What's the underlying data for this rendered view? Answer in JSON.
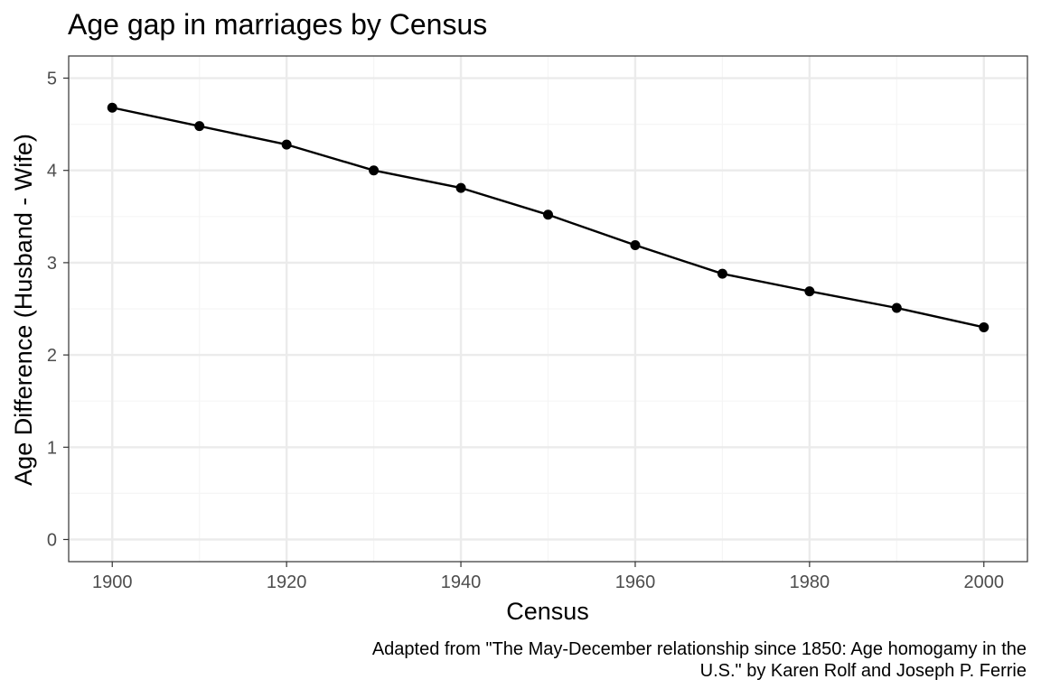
{
  "chart_data": {
    "type": "line",
    "title": "Age gap in marriages by Census",
    "xlabel": "Census",
    "ylabel": "Age Difference (Husband - Wife)",
    "caption": [
      "Adapted from \"The May-December relationship since 1850: Age homogamy in the",
      "U.S.\" by Karen Rolf and Joseph P. Ferrie"
    ],
    "x": [
      1900,
      1910,
      1920,
      1930,
      1940,
      1950,
      1960,
      1970,
      1980,
      1990,
      2000
    ],
    "series": [
      {
        "values": [
          4.68,
          4.48,
          4.28,
          4.0,
          3.81,
          3.52,
          3.19,
          2.88,
          2.69,
          2.51,
          2.3
        ]
      }
    ],
    "xlim": [
      1895,
      2005
    ],
    "ylim": [
      -0.24,
      5.24
    ],
    "xticks": [
      1900,
      1920,
      1940,
      1960,
      1980,
      2000
    ],
    "xminor": [
      1910,
      1930,
      1950,
      1970,
      1990
    ],
    "yticks": [
      0,
      1,
      2,
      3,
      4,
      5
    ],
    "yminor": [
      0.5,
      1.5,
      2.5,
      3.5,
      4.5
    ],
    "grid": true,
    "legend": "none",
    "colors": {
      "line": "#000000",
      "point": "#000000",
      "grid_major": "#ebebeb",
      "grid_minor": "#f5f5f5",
      "panel_border": "#333333",
      "tick_text": "#4d4d4d",
      "text": "#000000"
    }
  }
}
